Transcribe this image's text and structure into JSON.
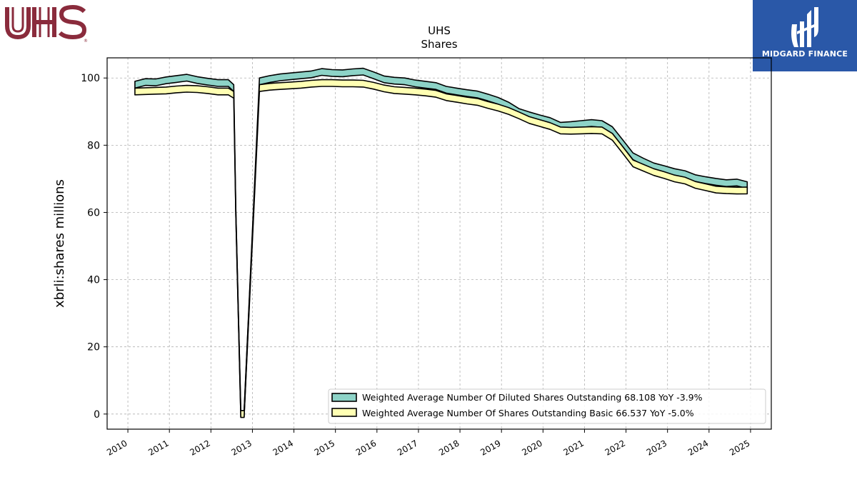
{
  "logos": {
    "left": {
      "text": "UHS",
      "mark": "®",
      "color": "#8a2b3c"
    },
    "right": {
      "text": "MIDGARD FINANCE",
      "background": "#2a58a8"
    }
  },
  "chart_data": {
    "type": "area",
    "title": "UHS",
    "subtitle": "Shares",
    "xlabel": "",
    "ylabel": "xbrli:shares millions",
    "xlim": [
      2009.5,
      2025.5
    ],
    "ylim": [
      -4.5,
      106
    ],
    "x_ticks": [
      "2010",
      "2011",
      "2012",
      "2013",
      "2014",
      "2015",
      "2016",
      "2017",
      "2018",
      "2019",
      "2020",
      "2021",
      "2022",
      "2023",
      "2024",
      "2025"
    ],
    "y_ticks": [
      "0",
      "20",
      "40",
      "60",
      "80",
      "100"
    ],
    "grid": true,
    "legend_position": "lower-right",
    "series": [
      {
        "name": "Weighted Average Number Of Diluted Shares Outstanding",
        "legend_label": "Weighted Average Number Of Diluted Shares Outstanding  68.108 YoY -3.9%",
        "color": "#8dd3c7",
        "x": [
          2010.17,
          2010.42,
          2010.67,
          2010.92,
          2011.17,
          2011.42,
          2011.67,
          2011.92,
          2012.17,
          2012.42,
          2012.55,
          2012.6,
          2012.72,
          2012.8,
          2013.17,
          2013.42,
          2013.67,
          2013.92,
          2014.17,
          2014.42,
          2014.67,
          2014.92,
          2015.17,
          2015.42,
          2015.67,
          2015.92,
          2016.17,
          2016.42,
          2016.67,
          2016.92,
          2017.17,
          2017.42,
          2017.67,
          2017.92,
          2018.17,
          2018.42,
          2018.67,
          2018.92,
          2019.17,
          2019.42,
          2019.67,
          2019.92,
          2020.17,
          2020.42,
          2020.67,
          2020.92,
          2021.17,
          2021.42,
          2021.67,
          2021.92,
          2022.17,
          2022.42,
          2022.67,
          2022.92,
          2023.17,
          2023.42,
          2023.67,
          2023.92,
          2024.17,
          2024.42,
          2024.67,
          2024.92
        ],
        "values": [
          98.0,
          98.8,
          98.7,
          99.3,
          99.7,
          100.1,
          99.4,
          98.9,
          98.5,
          98.5,
          97.0,
          60.0,
          0.0,
          0.0,
          99.0,
          99.7,
          100.2,
          100.5,
          100.8,
          101.1,
          101.8,
          101.5,
          101.4,
          101.7,
          101.9,
          100.8,
          99.6,
          99.2,
          99.0,
          98.4,
          98.0,
          97.6,
          96.5,
          96.0,
          95.5,
          95.1,
          94.2,
          93.2,
          91.8,
          89.9,
          88.9,
          88.0,
          87.2,
          85.8,
          86.0,
          86.3,
          86.6,
          86.3,
          84.5,
          80.6,
          76.7,
          75.1,
          73.7,
          72.9,
          72.0,
          71.4,
          70.2,
          69.6,
          69.1,
          68.7,
          68.9,
          68.108
        ]
      },
      {
        "name": "Weighted Average Number Of Shares Outstanding Basic",
        "legend_label": "Weighted Average Number Of Shares Outstanding Basic  66.537 YoY -5.0%",
        "color": "#ffffb3",
        "x": [
          2010.17,
          2010.42,
          2010.67,
          2010.92,
          2011.17,
          2011.42,
          2011.67,
          2011.92,
          2012.17,
          2012.42,
          2012.55,
          2012.6,
          2012.72,
          2012.8,
          2013.17,
          2013.42,
          2013.67,
          2013.92,
          2014.17,
          2014.42,
          2014.67,
          2014.92,
          2015.17,
          2015.42,
          2015.67,
          2015.92,
          2016.17,
          2016.42,
          2016.67,
          2016.92,
          2017.17,
          2017.42,
          2017.67,
          2017.92,
          2018.17,
          2018.42,
          2018.67,
          2018.92,
          2019.17,
          2019.42,
          2019.67,
          2019.92,
          2020.17,
          2020.42,
          2020.67,
          2020.92,
          2021.17,
          2021.42,
          2021.67,
          2021.92,
          2022.17,
          2022.42,
          2022.67,
          2022.92,
          2023.17,
          2023.42,
          2023.67,
          2023.92,
          2024.17,
          2024.42,
          2024.67,
          2024.92
        ],
        "values": [
          96.0,
          96.1,
          96.2,
          96.3,
          96.6,
          96.8,
          96.7,
          96.4,
          96.0,
          96.0,
          95.0,
          60.0,
          0.0,
          0.0,
          97.0,
          97.4,
          97.6,
          97.8,
          98.0,
          98.3,
          98.5,
          98.5,
          98.4,
          98.4,
          98.3,
          97.7,
          96.9,
          96.4,
          96.2,
          96.0,
          95.7,
          95.3,
          94.3,
          93.8,
          93.3,
          92.9,
          92.0,
          91.2,
          90.2,
          88.9,
          87.5,
          86.6,
          85.7,
          84.4,
          84.3,
          84.4,
          84.5,
          84.4,
          82.5,
          78.6,
          74.6,
          73.3,
          72.0,
          71.1,
          70.1,
          69.5,
          68.2,
          67.5,
          66.8,
          66.6,
          66.5,
          66.537
        ]
      }
    ]
  }
}
